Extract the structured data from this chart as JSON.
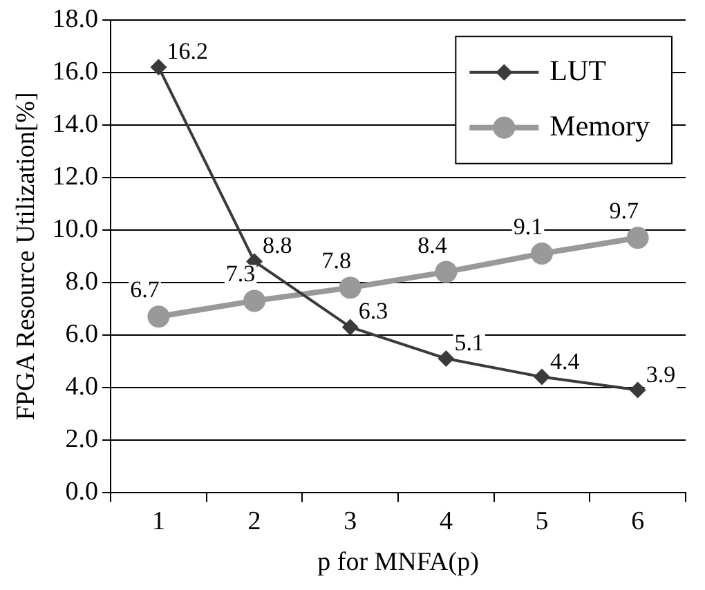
{
  "chart_data": {
    "type": "line",
    "xlabel": "p for MNFA(p)",
    "ylabel": "FPGA Resource Utilization[%]",
    "categories": [
      "1",
      "2",
      "3",
      "4",
      "5",
      "6"
    ],
    "series": [
      {
        "name": "LUT",
        "color": "#3a3a3a",
        "marker": "diamond",
        "values": [
          16.2,
          8.8,
          6.3,
          5.1,
          4.4,
          3.9
        ]
      },
      {
        "name": "Memory",
        "color": "#999999",
        "marker": "circle",
        "values": [
          6.7,
          7.3,
          7.8,
          8.4,
          9.1,
          9.7
        ]
      }
    ],
    "ylim": [
      0,
      18
    ],
    "yticks": [
      {
        "value": 0,
        "label": "0.0"
      },
      {
        "value": 2,
        "label": "2.0"
      },
      {
        "value": 4,
        "label": "4.0"
      },
      {
        "value": 6,
        "label": "6.0"
      },
      {
        "value": 8,
        "label": "8.0"
      },
      {
        "value": 10,
        "label": "10.0"
      },
      {
        "value": 12,
        "label": "12.0"
      },
      {
        "value": 14,
        "label": "14.0"
      },
      {
        "value": 16,
        "label": "16.0"
      },
      {
        "value": 18,
        "label": "18.0"
      }
    ],
    "grid": "y",
    "legend": "top right",
    "data_labels": true,
    "line_style": "solid"
  }
}
